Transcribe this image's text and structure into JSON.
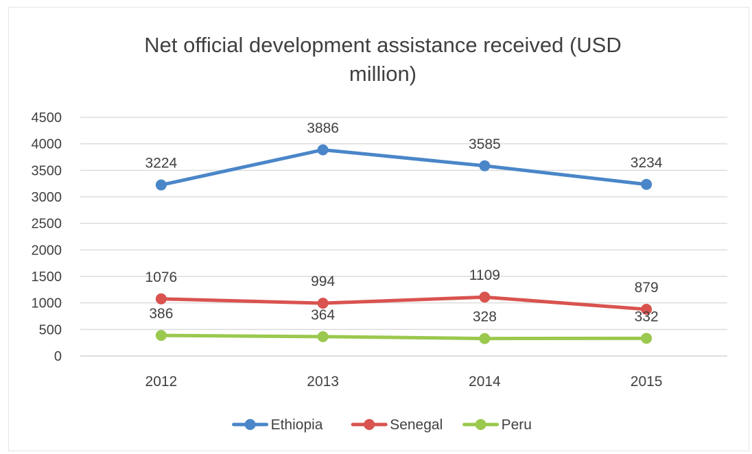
{
  "chart_data": {
    "type": "line",
    "title": "Net official development assistance received (USD million)",
    "title_lines": [
      "Net official development assistance received (USD",
      "million)"
    ],
    "categories": [
      "2012",
      "2013",
      "2014",
      "2015"
    ],
    "series": [
      {
        "name": "Ethiopia",
        "values": [
          3224,
          3886,
          3585,
          3234
        ],
        "color": "#4a86c8"
      },
      {
        "name": "Senegal",
        "values": [
          1076,
          994,
          1109,
          879
        ],
        "color": "#d9534f"
      },
      {
        "name": "Peru",
        "values": [
          386,
          364,
          328,
          332
        ],
        "color": "#9bc84e"
      }
    ],
    "ylim": [
      0,
      4500
    ],
    "yticks": [
      0,
      500,
      1000,
      1500,
      2000,
      2500,
      3000,
      3500,
      4000,
      4500
    ],
    "xlabel": "",
    "ylabel": "",
    "grid": true,
    "legend": "bottom",
    "data_labels": true
  }
}
